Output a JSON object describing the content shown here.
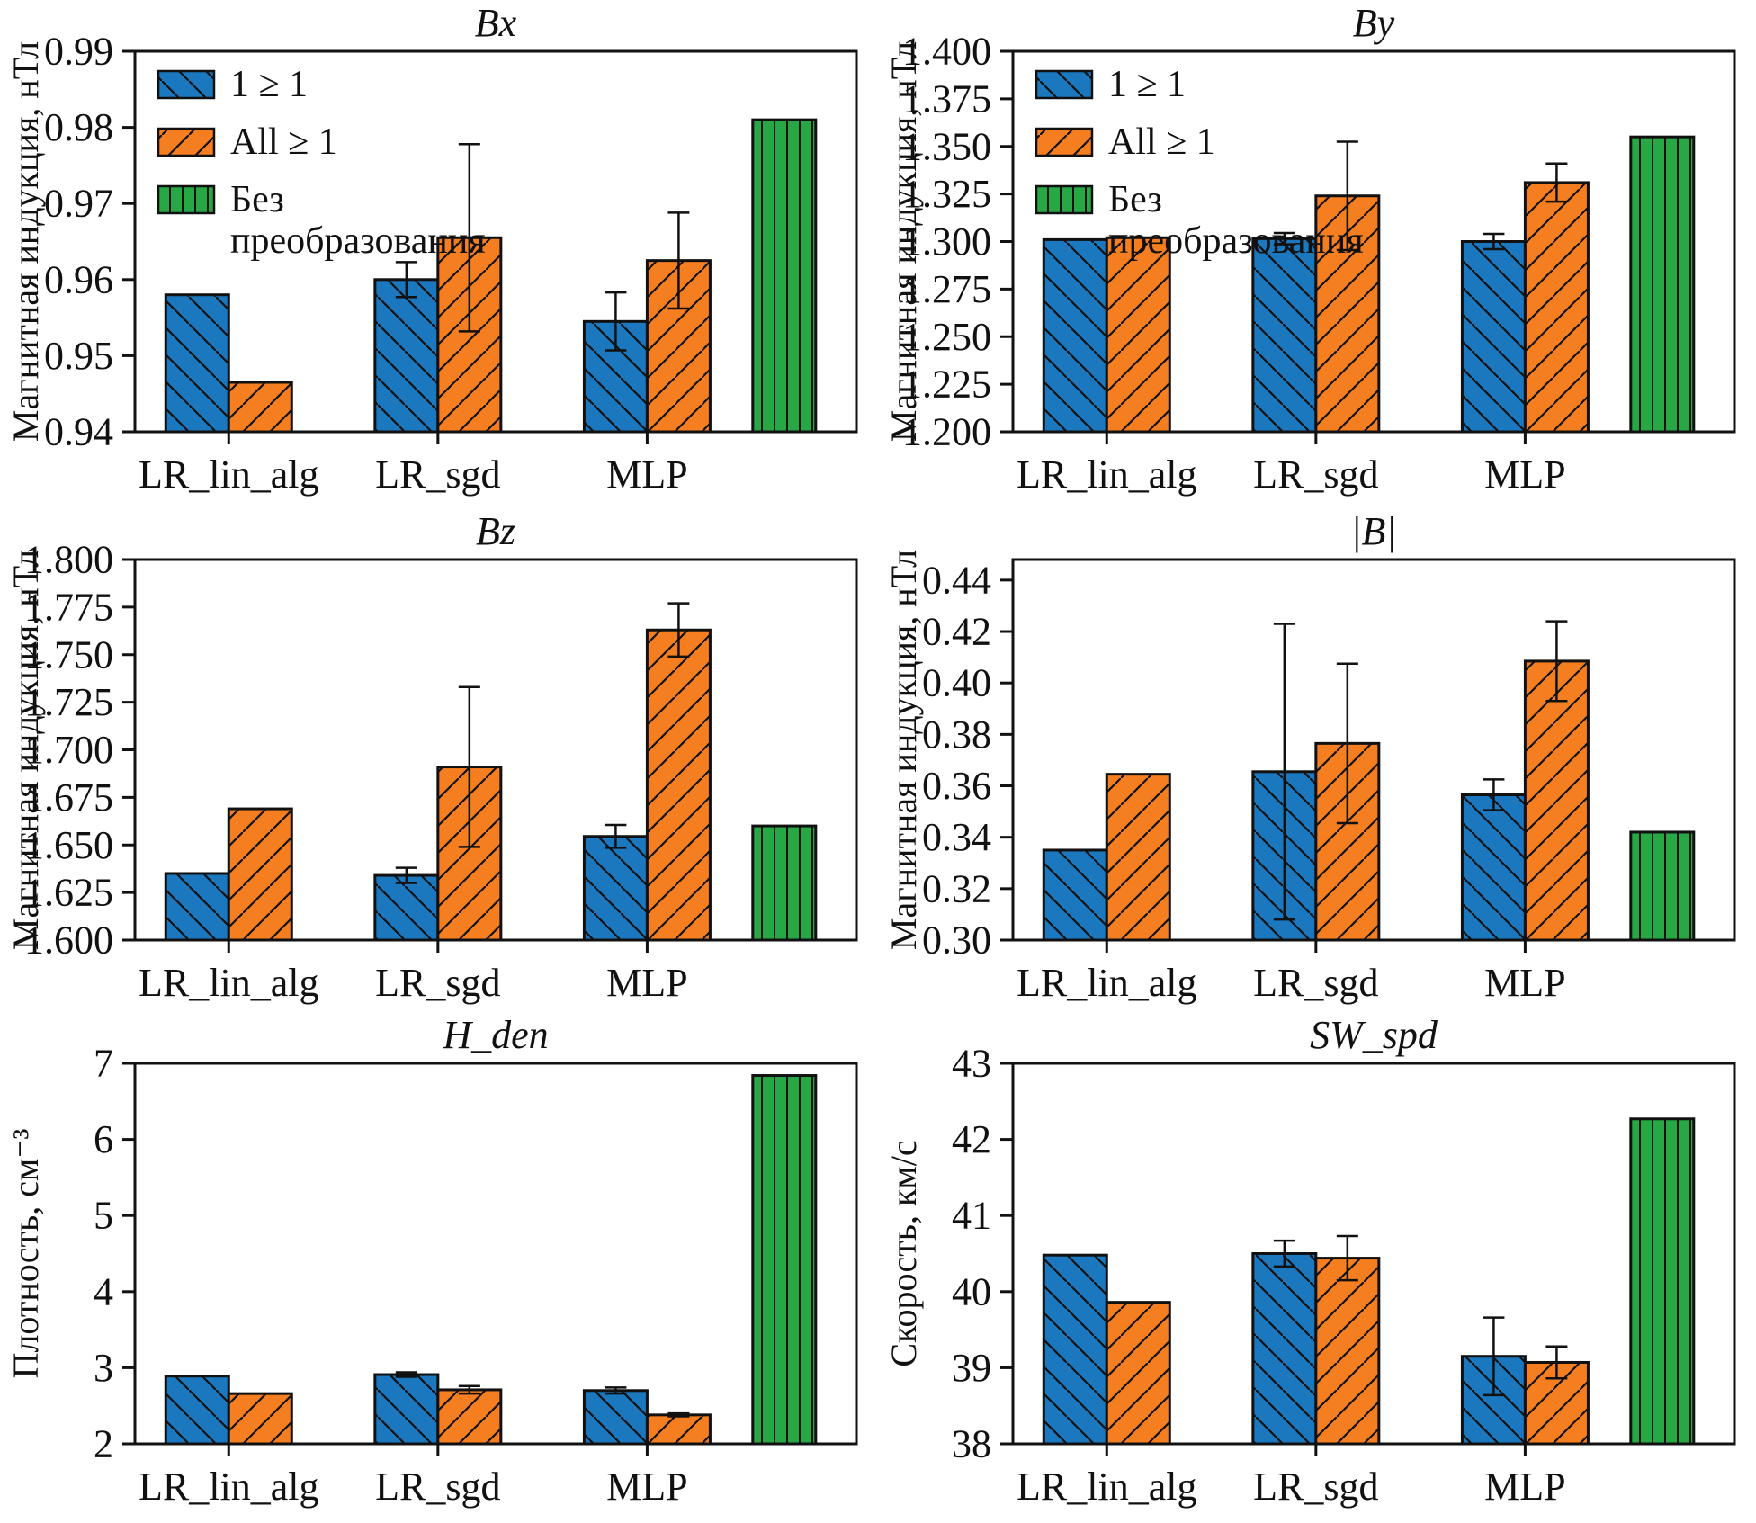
{
  "palette": {
    "blue": "#1b77be",
    "orange": "#f57e20",
    "green": "#27a844",
    "axis": "#111111"
  },
  "legend": {
    "items": [
      {
        "series": "one_ge_one",
        "label": "1 ≥ 1",
        "color_key": "blue",
        "hatch": "backslash"
      },
      {
        "series": "all_ge_one",
        "label": "All ≥ 1",
        "color_key": "orange",
        "hatch": "slash"
      },
      {
        "series": "no_transform",
        "label": "Без",
        "label2": "преобразования",
        "color_key": "green",
        "hatch": "vertical"
      }
    ]
  },
  "chart_data": [
    {
      "id": "bx",
      "type": "bar",
      "title": "Bx",
      "ylabel": "Магнитная индукция, нТл",
      "categories": [
        "LR_lin_alg",
        "LR_sgd",
        "MLP"
      ],
      "ylim": [
        0.94,
        0.99
      ],
      "ytick_step": 0.01,
      "ytick_max": 0.99,
      "ytick_decimals": 2,
      "show_legend": true,
      "series": [
        {
          "name": "1 ≥ 1",
          "color_key": "blue",
          "values": [
            0.958,
            0.96,
            0.9545
          ],
          "err": [
            0,
            0.0023,
            0.0038
          ]
        },
        {
          "name": "All ≥ 1",
          "color_key": "orange",
          "values": [
            0.9465,
            0.9655,
            0.9625
          ],
          "err": [
            0,
            0.0123,
            0.0063
          ]
        }
      ],
      "no_transform_value": 0.981
    },
    {
      "id": "by",
      "type": "bar",
      "title": "By",
      "ylabel": "Магнитная индукция, нТл",
      "categories": [
        "LR_lin_alg",
        "LR_sgd",
        "MLP"
      ],
      "ylim": [
        1.2,
        1.4
      ],
      "ytick_step": 0.025,
      "ytick_max": 1.4,
      "ytick_decimals": 3,
      "show_legend": true,
      "series": [
        {
          "name": "1 ≥ 1",
          "color_key": "blue",
          "values": [
            1.301,
            1.3015,
            1.3
          ],
          "err": [
            0,
            0.003,
            0.004
          ]
        },
        {
          "name": "All ≥ 1",
          "color_key": "orange",
          "values": [
            1.302,
            1.324,
            1.331
          ],
          "err": [
            0,
            0.0285,
            0.01
          ]
        }
      ],
      "no_transform_value": 1.355
    },
    {
      "id": "bz",
      "type": "bar",
      "title": "Bz",
      "ylabel": "Магнитная индукция, нТл",
      "categories": [
        "LR_lin_alg",
        "LR_sgd",
        "MLP"
      ],
      "ylim": [
        1.6,
        1.8
      ],
      "ytick_step": 0.025,
      "ytick_max": 1.8,
      "ytick_decimals": 3,
      "show_legend": false,
      "series": [
        {
          "name": "1 ≥ 1",
          "color_key": "blue",
          "values": [
            1.635,
            1.634,
            1.6545
          ],
          "err": [
            0,
            0.004,
            0.006
          ]
        },
        {
          "name": "All ≥ 1",
          "color_key": "orange",
          "values": [
            1.669,
            1.691,
            1.763
          ],
          "err": [
            0,
            0.042,
            0.014
          ]
        }
      ],
      "no_transform_value": 1.66
    },
    {
      "id": "b_abs",
      "type": "bar",
      "title": "|B|",
      "ylabel": "Магнитная индукция, нТл",
      "categories": [
        "LR_lin_alg",
        "LR_sgd",
        "MLP"
      ],
      "ylim": [
        0.3,
        0.448
      ],
      "ytick_step": 0.02,
      "ytick_max": 0.44,
      "ytick_decimals": 2,
      "show_legend": false,
      "series": [
        {
          "name": "1 ≥ 1",
          "color_key": "blue",
          "values": [
            0.335,
            0.3655,
            0.3565
          ],
          "err": [
            0,
            0.0575,
            0.006
          ]
        },
        {
          "name": "All ≥ 1",
          "color_key": "orange",
          "values": [
            0.3645,
            0.3765,
            0.4085
          ],
          "err": [
            0,
            0.031,
            0.0155
          ]
        }
      ],
      "no_transform_value": 0.342
    },
    {
      "id": "h_den",
      "type": "bar",
      "title": "H_den",
      "ylabel": "Плотность, см⁻³",
      "categories": [
        "LR_lin_alg",
        "LR_sgd",
        "MLP"
      ],
      "ylim": [
        2,
        7
      ],
      "ytick_step": 1,
      "ytick_max": 7,
      "ytick_decimals": 0,
      "show_legend": false,
      "series": [
        {
          "name": "1 ≥ 1",
          "color_key": "blue",
          "values": [
            2.89,
            2.91,
            2.7
          ],
          "err": [
            0,
            0.03,
            0.04
          ]
        },
        {
          "name": "All ≥ 1",
          "color_key": "orange",
          "values": [
            2.66,
            2.71,
            2.38
          ],
          "err": [
            0,
            0.05,
            0.02
          ]
        }
      ],
      "no_transform_value": 6.84
    },
    {
      "id": "sw_spd",
      "type": "bar",
      "title": "SW_spd",
      "ylabel": "Скорость, км/с",
      "categories": [
        "LR_lin_alg",
        "LR_sgd",
        "MLP"
      ],
      "ylim": [
        38,
        43
      ],
      "ytick_step": 1,
      "ytick_max": 43,
      "ytick_decimals": 0,
      "show_legend": false,
      "series": [
        {
          "name": "1 ≥ 1",
          "color_key": "blue",
          "values": [
            40.48,
            40.5,
            39.15
          ],
          "err": [
            0,
            0.17,
            0.51
          ]
        },
        {
          "name": "All ≥ 1",
          "color_key": "orange",
          "values": [
            39.86,
            40.44,
            39.07
          ],
          "err": [
            0,
            0.29,
            0.21
          ]
        }
      ],
      "no_transform_value": 42.27
    }
  ]
}
